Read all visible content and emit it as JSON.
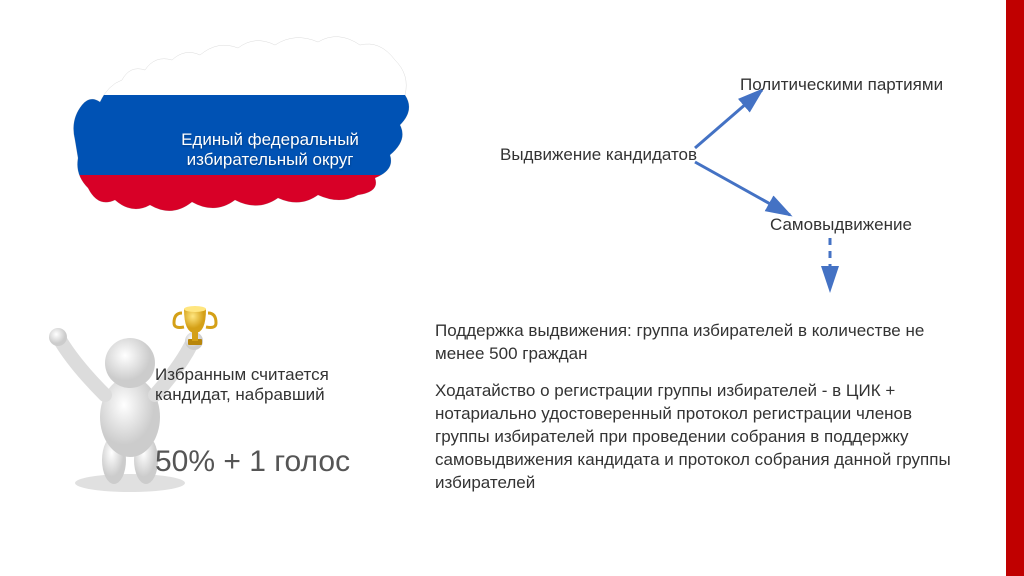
{
  "colors": {
    "accent_bar": "#c00000",
    "arrow": "#4472c4",
    "text": "#333333",
    "pct_text": "#555555",
    "map_white": "#ffffff",
    "map_blue": "#0052b4",
    "map_red": "#d80027",
    "trophy_cup": "#f4c430",
    "trophy_base": "#b8860b",
    "figure_body": "#e8e8e8"
  },
  "map": {
    "label": "Единый федеральный\nизбирательный округ"
  },
  "figure": {
    "caption": "Избранным считается кандидат, набравший",
    "percent": "50% + 1 голос"
  },
  "diagram": {
    "center": "Выдвижение кандидатов",
    "top": "Политическими партиями",
    "bottom": "Самовыдвижение",
    "arrow_color": "#4472c4",
    "arrow_width": 3
  },
  "paragraphs": {
    "p1": "Поддержка выдвижения: группа избирателей в количестве не менее 500 граждан",
    "p2": "Ходатайство о регистрации группы избирателей - в ЦИК + нотариально удостоверенный протокол регистрации членов группы избирателей при проведении собрания в поддержку самовыдвижения кандидата и протокол собрания данной группы избирателей"
  }
}
